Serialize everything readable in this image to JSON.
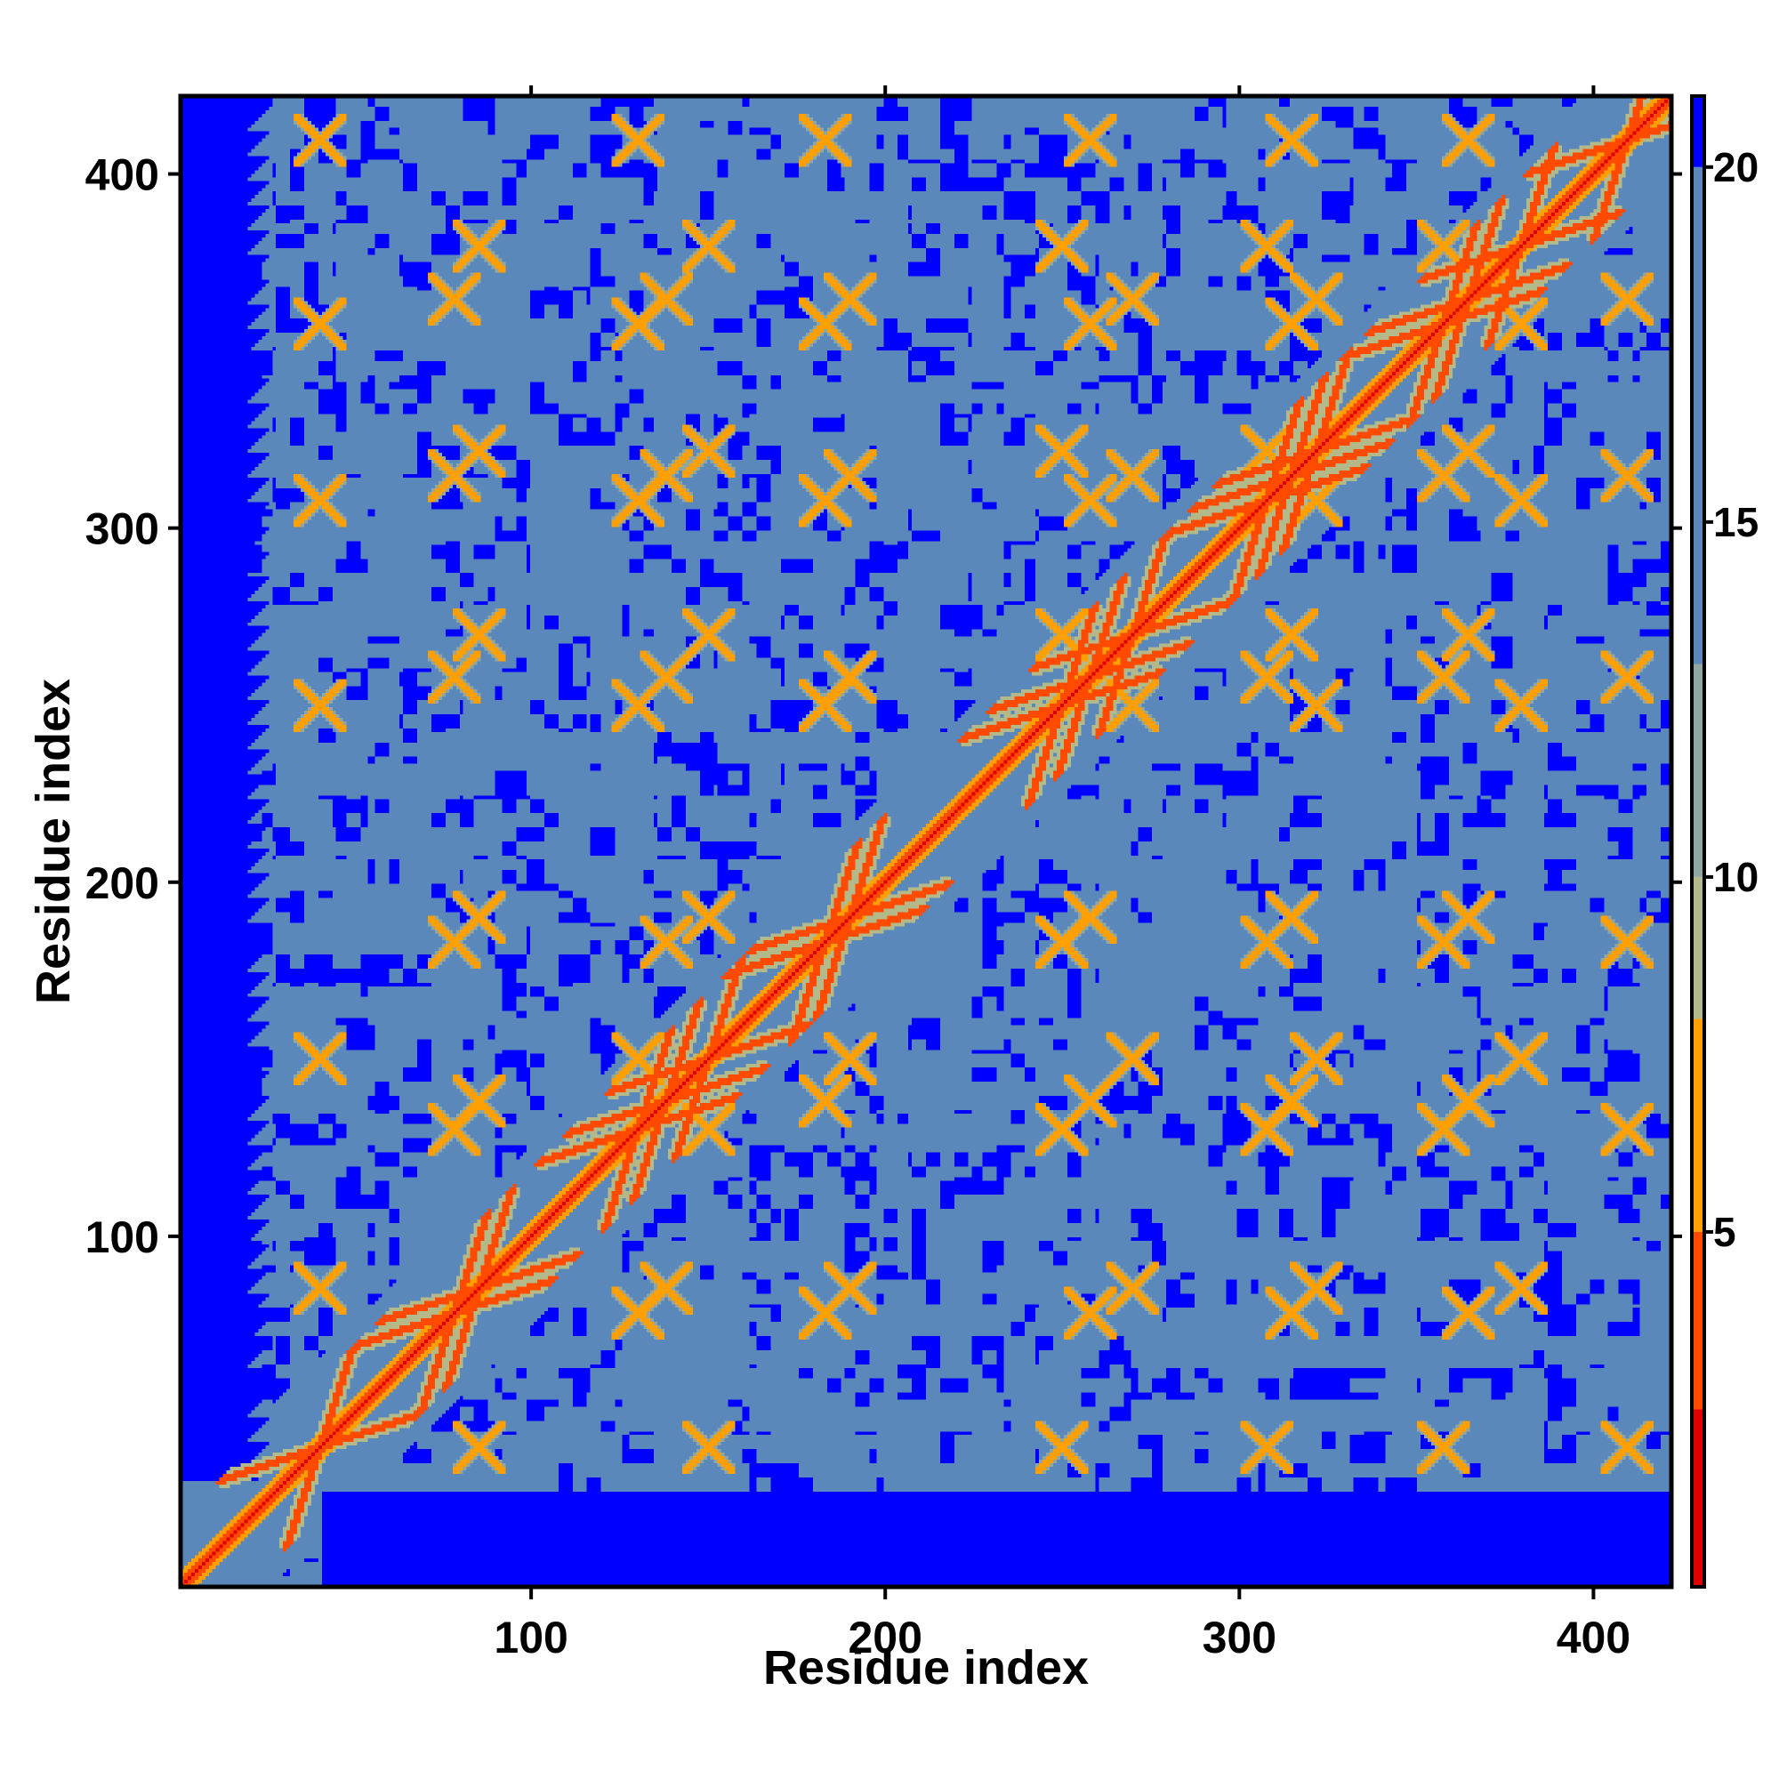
{
  "chart_data": {
    "type": "heatmap",
    "title": "",
    "xlabel": "Residue index",
    "ylabel": "Residue index",
    "x_range": [
      1,
      422
    ],
    "y_range": [
      1,
      422
    ],
    "x_ticks": [
      100,
      200,
      300,
      400
    ],
    "y_ticks": [
      100,
      200,
      300,
      400
    ],
    "x_tick_labels": [
      "100",
      "200",
      "300",
      "400"
    ],
    "y_tick_labels": [
      "100",
      "200",
      "300",
      "400"
    ],
    "colorbar": {
      "range": [
        0,
        21
      ],
      "ticks": [
        5,
        10,
        15,
        20
      ],
      "tick_labels": [
        "5",
        "10",
        "15",
        "20"
      ],
      "placement": "right"
    },
    "color_scale": [
      {
        "max": 2.5,
        "color": "#e00000",
        "meaning": "red"
      },
      {
        "max": 5,
        "color": "#ff4a00",
        "meaning": "red-orange"
      },
      {
        "max": 8,
        "color": "#ffa000",
        "meaning": "orange"
      },
      {
        "max": 10,
        "color": "#b4b98a",
        "meaning": "khaki"
      },
      {
        "max": 13,
        "color": "#8fa6a3",
        "meaning": "grey-green"
      },
      {
        "max": 20,
        "color": "#5b88bb",
        "meaning": "steel blue"
      },
      {
        "max": 21,
        "color": "#0000ff",
        "meaning": "blue"
      }
    ],
    "description_values": {
      "matrix_size": 422,
      "diagonal_distance": 0,
      "background_far_distance": 21,
      "helix_cross_centers": [
        40,
        78,
        85,
        130,
        138,
        150,
        183,
        190,
        250,
        258,
        270,
        308,
        315,
        322,
        358,
        365,
        380,
        410
      ]
    },
    "grid": false
  }
}
